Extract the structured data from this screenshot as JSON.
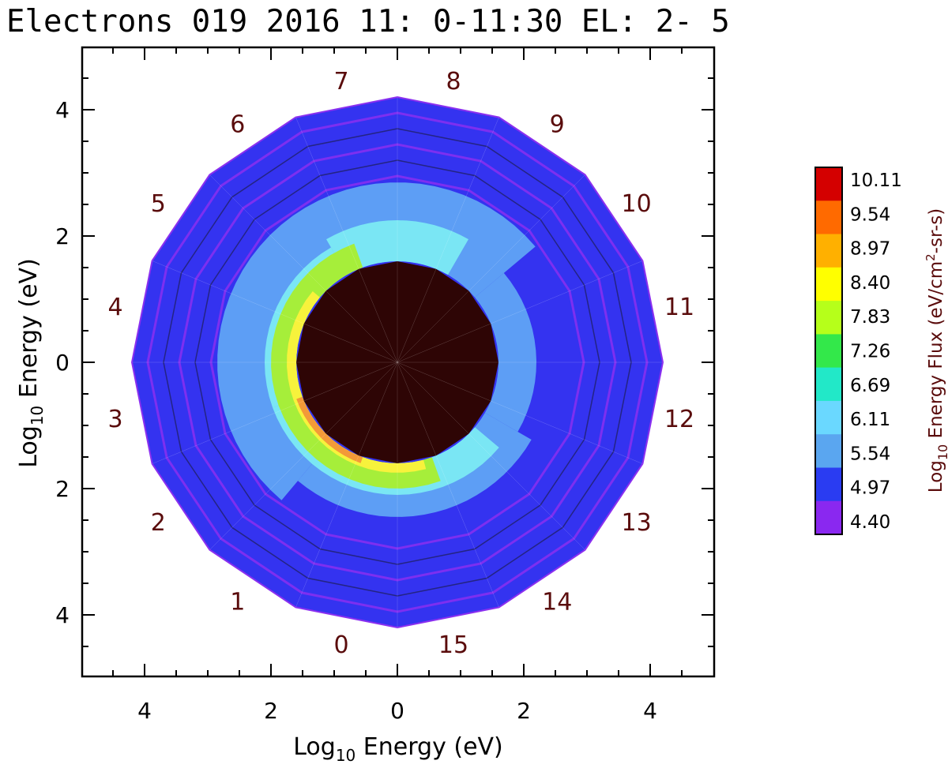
{
  "chart_data": {
    "type": "polar-contour",
    "title": "Electrons 019 2016 11: 0-11:30 EL: 2- 5",
    "xlabel_prefix": "Log",
    "xlabel_sub": "10",
    "xlabel_suffix": " Energy (eV)",
    "ylabel_prefix": "Log",
    "ylabel_sub": "10",
    "ylabel_suffix": " Energy (eV)",
    "xlim": [
      -5,
      5
    ],
    "ylim": [
      -5,
      5
    ],
    "xticks": [
      -4,
      -2,
      0,
      2,
      4
    ],
    "yticks": [
      -4,
      -2,
      0,
      2,
      4
    ],
    "xtick_labels": [
      "4",
      "2",
      "0",
      "2",
      "4"
    ],
    "ytick_labels": [
      "4",
      "2",
      "0",
      "2",
      "4"
    ],
    "sectors": [
      "0",
      "1",
      "2",
      "3",
      "4",
      "5",
      "6",
      "7",
      "8",
      "9",
      "10",
      "11",
      "12",
      "13",
      "14",
      "15"
    ],
    "colorbar": {
      "title_prefix": "Log",
      "title_sub": "10",
      "title_suffix": " Energy Flux (eV/cm",
      "title_sup": "2",
      "title_end": "-sr-s)",
      "levels": [
        10.11,
        9.54,
        8.97,
        8.4,
        7.83,
        7.26,
        6.69,
        6.11,
        5.54,
        4.97,
        4.4
      ],
      "level_labels": [
        "10.11",
        "9.54",
        "8.97",
        "8.40",
        "7.83",
        "7.26",
        "6.69",
        "6.11",
        "5.54",
        "4.97",
        "4.40"
      ],
      "colors": [
        "#d40000",
        "#ff6a00",
        "#ffb000",
        "#ffff00",
        "#b6ff1a",
        "#33e84a",
        "#22e8c8",
        "#6ad8ff",
        "#5aa6f0",
        "#2a3cf2",
        "#8a28f0"
      ]
    },
    "outer_radius": 4.2,
    "inner_radius": 1.6,
    "core_color": "#2e0505",
    "ring_colors": {
      "outer": "#3433f0",
      "purple": "#8b2ff0",
      "light_blue": "#5d9ef5",
      "cyan": "#7ae6f4",
      "green": "#a6ee3a",
      "yellow": "#f7f23c",
      "orange": "#f39a38"
    }
  }
}
